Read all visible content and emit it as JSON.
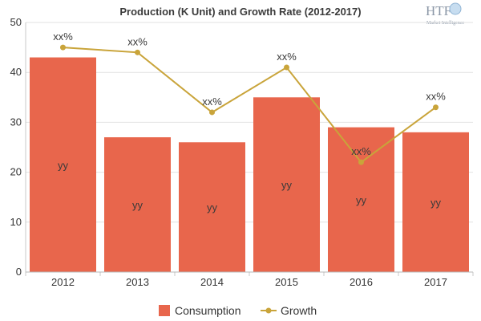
{
  "logo": {
    "mark": "HTF",
    "tagline": "Market Intelligence"
  },
  "chart_data": {
    "type": "bar",
    "title": "Production (K Unit) and Growth Rate (2012-2017)",
    "categories": [
      "2012",
      "2013",
      "2014",
      "2015",
      "2016",
      "2017"
    ],
    "ylim": [
      0,
      50
    ],
    "yticks": [
      0,
      10,
      20,
      30,
      40,
      50
    ],
    "grid": true,
    "legend_position": "bottom-center",
    "series": [
      {
        "name": "Consumption",
        "kind": "bar",
        "color": "#e8664c",
        "values": [
          43,
          27,
          26,
          35,
          29,
          28
        ],
        "labels": [
          "yy",
          "yy",
          "yy",
          "yy",
          "yy",
          "yy"
        ]
      },
      {
        "name": "Growth",
        "kind": "line",
        "color": "#c9a43a",
        "values": [
          45,
          44,
          32,
          41,
          22,
          33
        ],
        "labels": [
          "xx%",
          "xx%",
          "xx%",
          "xx%",
          "xx%",
          "xx%"
        ]
      }
    ]
  }
}
